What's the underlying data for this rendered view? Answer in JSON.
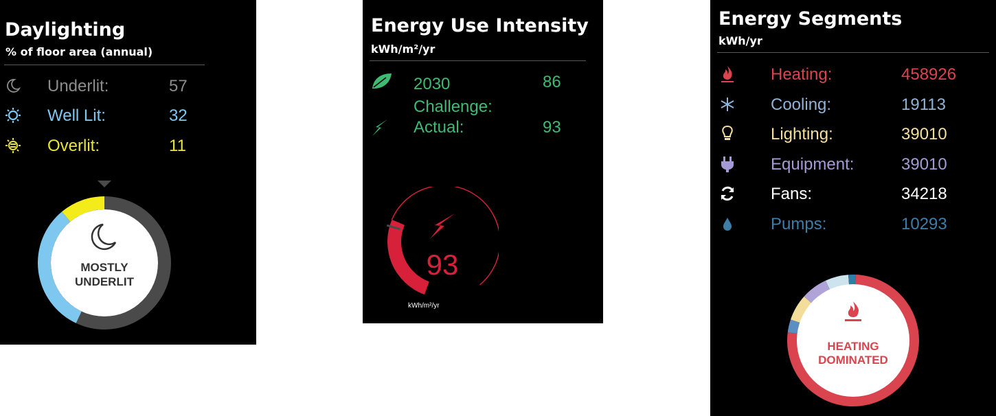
{
  "daylighting": {
    "title": "Daylighting",
    "subtitle": "% of floor area (annual)",
    "rows": [
      {
        "label": "Underlit:",
        "value": "57",
        "icon": "moon-icon",
        "color": "#8c8c8c"
      },
      {
        "label": "Well Lit:",
        "value": "32",
        "icon": "sun-icon",
        "color": "#7ec8f0"
      },
      {
        "label": "Overlit:",
        "value": "11",
        "icon": "hot-sun-icon",
        "color": "#e8e43a"
      }
    ],
    "donut": {
      "line1": "MOSTLY",
      "line2": "UNDERLIT",
      "segments": [
        {
          "label": "Underlit",
          "percent": 57,
          "color": "#4a4a4a"
        },
        {
          "label": "Well Lit",
          "percent": 32,
          "color": "#7ec8f0"
        },
        {
          "label": "Overlit",
          "percent": 11,
          "color": "#f3ec1a"
        }
      ]
    }
  },
  "eui": {
    "title": "Energy Use Intensity",
    "subtitle": "kWh/m²/yr",
    "rows": [
      {
        "label": "2030 Challenge:",
        "value": "86",
        "icon": "leaf-icon",
        "color": "#3dbb72"
      },
      {
        "label": "Actual:",
        "value": "93",
        "icon": "lightning-icon",
        "color": "#3dbb72"
      }
    ],
    "gauge": {
      "value": "93",
      "target": 86,
      "unit": "kWh/m²/yr",
      "color": "#d7203a"
    }
  },
  "segments": {
    "title": "Energy Segments",
    "subtitle": "kWh/yr",
    "rows": [
      {
        "label": "Heating:",
        "value": "458926",
        "icon": "flame-icon",
        "color": "#d9444f"
      },
      {
        "label": "Cooling:",
        "value": "19113",
        "icon": "snowflake-icon",
        "color": "#8fb2d6"
      },
      {
        "label": "Lighting:",
        "value": "39010",
        "icon": "lightbulb-icon",
        "color": "#f5df9a"
      },
      {
        "label": "Equipment:",
        "value": "39010",
        "icon": "plug-icon",
        "color": "#a69ad6"
      },
      {
        "label": "Fans:",
        "value": "34218",
        "icon": "refresh-icon",
        "color": "#ffffff"
      },
      {
        "label": "Pumps:",
        "value": "10293",
        "icon": "droplet-icon",
        "color": "#3d7ea8"
      }
    ],
    "donut": {
      "line1": "HEATING",
      "line2": "DOMINATED",
      "segments": [
        {
          "label": "Heating",
          "value": 458926,
          "color": "#d9444f"
        },
        {
          "label": "Cooling",
          "value": 19113,
          "color": "#5b8fc4"
        },
        {
          "label": "Lighting",
          "value": 39010,
          "color": "#f3dd9a"
        },
        {
          "label": "Equipment",
          "value": 39010,
          "color": "#b0a3d8"
        },
        {
          "label": "Fans",
          "value": 34218,
          "color": "#cde4ee"
        },
        {
          "label": "Pumps",
          "value": 10293,
          "color": "#2f7ea6"
        }
      ]
    }
  }
}
